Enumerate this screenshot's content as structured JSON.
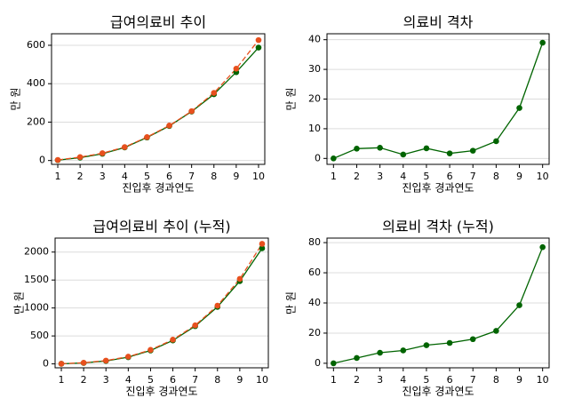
{
  "chart_data": [
    {
      "type": "line",
      "title": "급여의료비 추이",
      "x_label": "진입후 경과연도",
      "y_label": "만 원",
      "x": [
        1,
        2,
        3,
        4,
        5,
        6,
        7,
        8,
        9,
        10
      ],
      "xlim": [
        0.72,
        10.28
      ],
      "xticks": [
        1,
        2,
        3,
        4,
        5,
        6,
        7,
        8,
        9,
        10
      ],
      "ylim": [
        -20,
        660
      ],
      "yticks": [
        0,
        200,
        400,
        600
      ],
      "grid": true,
      "series": [
        {
          "color": "#006400",
          "line_style": "solid",
          "values": [
            2,
            15,
            35,
            68,
            120,
            180,
            255,
            345,
            460,
            588
          ]
        },
        {
          "color": "#e8501e",
          "line_style": "dashed",
          "values": [
            3,
            18,
            38,
            70,
            122,
            182,
            257,
            352,
            478,
            627
          ]
        }
      ]
    },
    {
      "type": "line",
      "title": "의료비 격차",
      "x_label": "진입후 경과연도",
      "y_label": "만 원",
      "x": [
        1,
        2,
        3,
        4,
        5,
        6,
        7,
        8,
        9,
        10
      ],
      "xlim": [
        0.72,
        10.28
      ],
      "xticks": [
        1,
        2,
        3,
        4,
        5,
        6,
        7,
        8,
        9,
        10
      ],
      "ylim": [
        -2,
        42
      ],
      "yticks": [
        0,
        10,
        20,
        30,
        40
      ],
      "grid": true,
      "series": [
        {
          "color": "#006400",
          "line_style": "solid",
          "values": [
            0,
            3.3,
            3.6,
            1.3,
            3.4,
            1.7,
            2.6,
            5.8,
            17,
            39
          ]
        }
      ]
    },
    {
      "type": "line",
      "title": "급여의료비 추이 (누적)",
      "x_label": "진입후 경과연도",
      "y_label": "만 원",
      "x": [
        1,
        2,
        3,
        4,
        5,
        6,
        7,
        8,
        9,
        10
      ],
      "xlim": [
        0.72,
        10.28
      ],
      "xticks": [
        1,
        2,
        3,
        4,
        5,
        6,
        7,
        8,
        9,
        10
      ],
      "ylim": [
        -70,
        2250
      ],
      "yticks": [
        0,
        500,
        1000,
        1500,
        2000
      ],
      "grid": true,
      "series": [
        {
          "color": "#006400",
          "line_style": "solid",
          "values": [
            2,
            17,
            52,
            120,
            240,
            420,
            675,
            1020,
            1480,
            2068
          ]
        },
        {
          "color": "#e8501e",
          "line_style": "dashed",
          "values": [
            3,
            21,
            59,
            129,
            251,
            433,
            690,
            1042,
            1520,
            2147
          ]
        }
      ]
    },
    {
      "type": "line",
      "title": "의료비 격차 (누적)",
      "x_label": "진입후 경과연도",
      "y_label": "만 원",
      "x": [
        1,
        2,
        3,
        4,
        5,
        6,
        7,
        8,
        9,
        10
      ],
      "xlim": [
        0.72,
        10.28
      ],
      "xticks": [
        1,
        2,
        3,
        4,
        5,
        6,
        7,
        8,
        9,
        10
      ],
      "ylim": [
        -3,
        83
      ],
      "yticks": [
        0,
        20,
        40,
        60,
        80
      ],
      "grid": true,
      "series": [
        {
          "color": "#006400",
          "line_style": "solid",
          "values": [
            0,
            3.5,
            7,
            8.5,
            12,
            13.5,
            16,
            21.5,
            38.5,
            77
          ]
        }
      ]
    }
  ]
}
